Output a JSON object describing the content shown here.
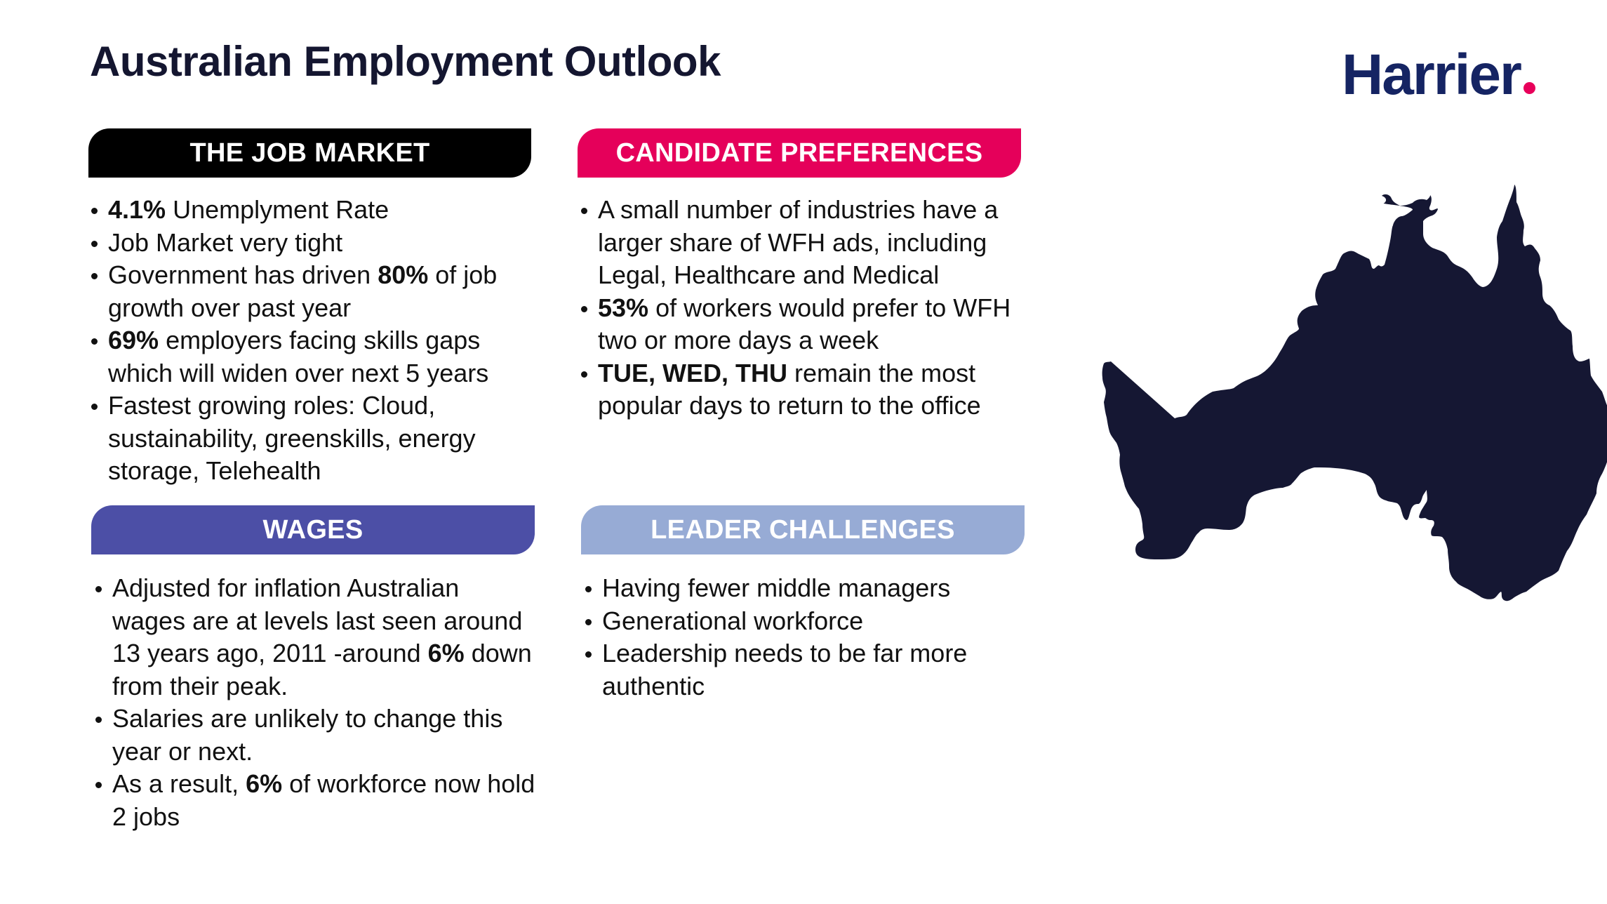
{
  "header": {
    "title": "Australian Employment Outlook",
    "logo_text": "Harrier",
    "logo_color": "#152463",
    "logo_dot_color": "#e8005a"
  },
  "sections": {
    "job_market": {
      "heading": "THE JOB MARKET",
      "color": "#000000",
      "items": [
        {
          "bold": "4.1%",
          "text": " Unemplyment Rate"
        },
        {
          "bold": "",
          "text": "Job Market very tight"
        },
        {
          "pre": "Government has driven ",
          "bold": "80%",
          "text": " of job growth over past year"
        },
        {
          "bold": "69%",
          "text": " employers facing skills gaps which will widen over next 5 years"
        },
        {
          "bold": "",
          "text": "Fastest growing roles: Cloud, sustainability, greenskills, energy storage, Telehealth"
        }
      ]
    },
    "candidate_preferences": {
      "heading": "CANDIDATE PREFERENCES",
      "color": "#e5005a",
      "items": [
        {
          "bold": "",
          "text": "A small number of industries have a larger share of WFH ads, including Legal, Healthcare and Medical"
        },
        {
          "bold": "53%",
          "text": " of workers would prefer to WFH two or more days a week"
        },
        {
          "bold": "TUE, WED, THU",
          "text": " remain the most popular days to return to the office"
        }
      ]
    },
    "wages": {
      "heading": "WAGES",
      "color": "#4c4fa6",
      "items": [
        {
          "pre": "Adjusted for inflation Australian wages are at levels last seen around 13 years ago, 2011 -around ",
          "bold": "6%",
          "text": " down from their peak."
        },
        {
          "bold": "",
          "text": "Salaries are unlikely to change this year or next."
        },
        {
          "pre": "As a result, ",
          "bold": "6%",
          "text": " of workforce now hold 2 jobs"
        }
      ]
    },
    "leader_challenges": {
      "heading": "LEADER CHALLENGES",
      "color": "#97abd5",
      "items": [
        {
          "bold": "",
          "text": "Having fewer middle managers"
        },
        {
          "bold": "",
          "text": "Generational workforce"
        },
        {
          "bold": "",
          "text": "Leadership needs to be far more authentic"
        }
      ]
    }
  },
  "map": {
    "label": "Map of Australia",
    "fill": "#151733",
    "border": "#6b6e86"
  }
}
